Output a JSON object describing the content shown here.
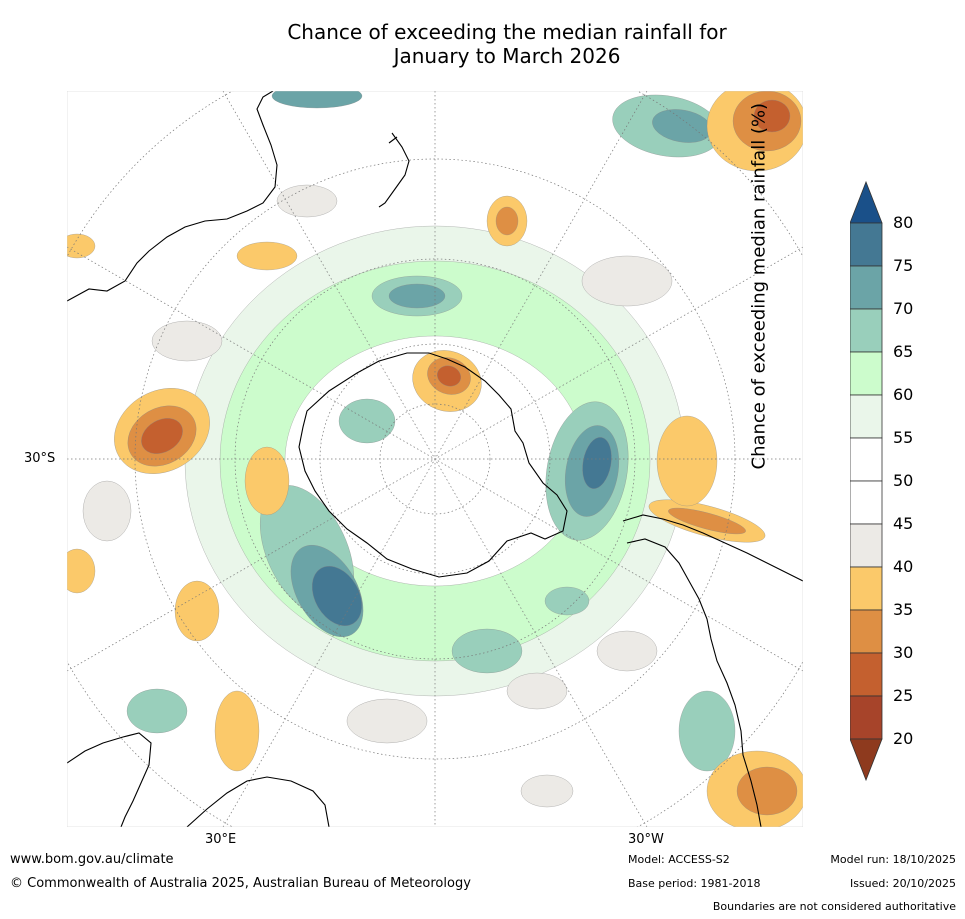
{
  "title": {
    "line1": "Chance of exceeding the median rainfall for",
    "line2": "January to March 2026"
  },
  "map_labels": {
    "lat_left": "30°S",
    "lon_bottom_left": "30°E",
    "lon_bottom_right": "30°W"
  },
  "colorbar": {
    "title": "Chance of exceeding median rainfall (%)",
    "ticks": [
      "20",
      "25",
      "30",
      "35",
      "40",
      "45",
      "50",
      "55",
      "60",
      "65",
      "70",
      "75",
      "80"
    ],
    "colors": {
      "below_20": "#8e3a1e",
      "20_25": "#a7442a",
      "25_30": "#c4602f",
      "30_35": "#de8f44",
      "35_40": "#fbc96a",
      "40_45": "#eceae6",
      "45_50": "#ffffff",
      "50_55": "#ffffff",
      "55_60": "#eaf6ea",
      "60_65": "#ccfccc",
      "65_70": "#99cfbb",
      "70_75": "#6ba4a7",
      "75_80": "#447893",
      "above_80": "#1a5089"
    }
  },
  "footer": {
    "website": "www.bom.gov.au/climate",
    "copyright": "© Commonwealth of Australia 2025, Australian Bureau of Meteorology",
    "model": "Model: ACCESS-S2",
    "base_period": "Base period: 1981-2018",
    "model_run": "Model run: 18/10/2025",
    "issued": "Issued: 20/10/2025",
    "disclaimer": "Boundaries are not considered authoritative"
  }
}
